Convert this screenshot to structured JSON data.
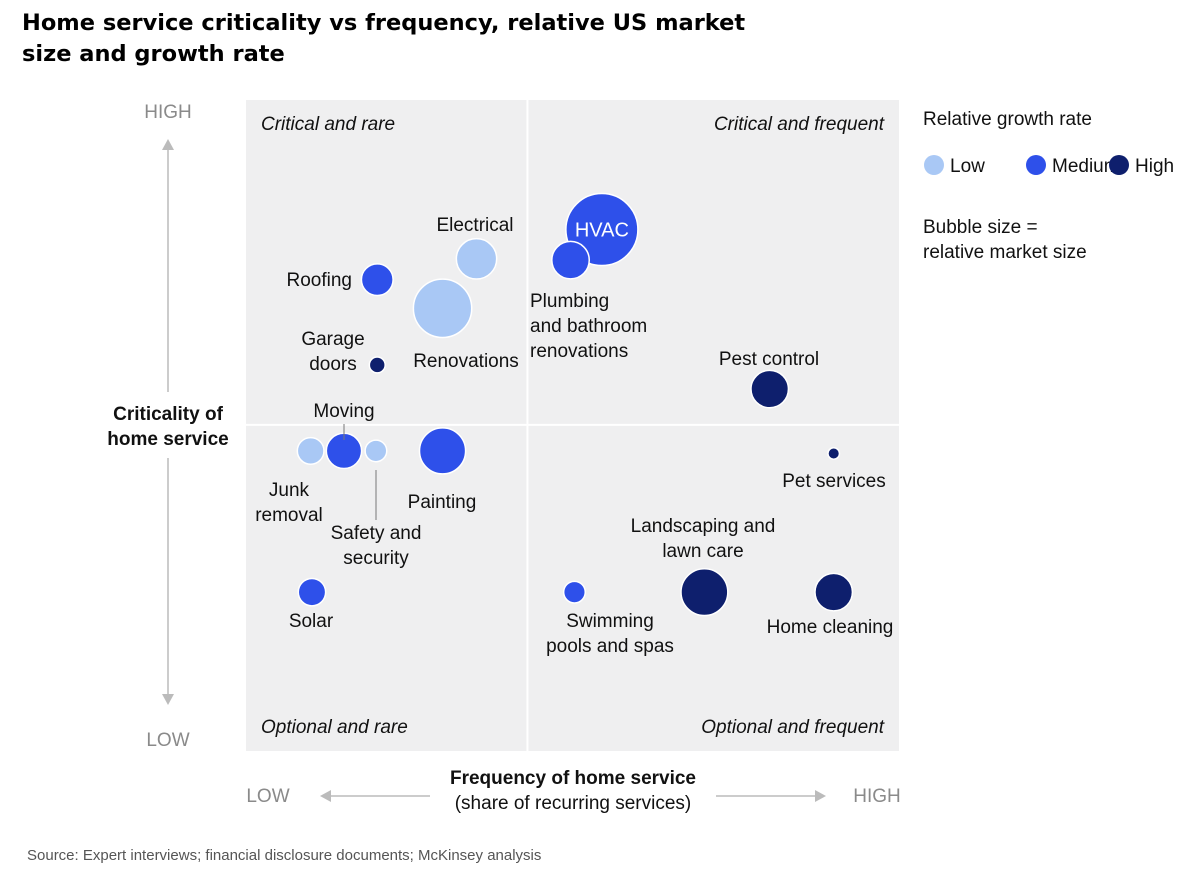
{
  "title": "Home service criticality vs frequency, relative US market size and growth rate",
  "source": "Source: Expert interviews; financial disclosure documents; McKinsey analysis",
  "colors": {
    "low": "#a9c8f5",
    "medium": "#2e50ea",
    "high": "#0e1f6d",
    "quadrant_bg": "#efeff0",
    "divider": "#ffffff",
    "axis_gray": "#8a8a8a"
  },
  "chart_data": {
    "type": "scatter",
    "subtype": "bubble",
    "title": "Home service criticality vs frequency, relative US market size and growth rate",
    "xlabel": "Frequency of home service",
    "xlabel_sub": "(share of recurring services)",
    "ylabel": "Criticality of home service",
    "x_low": "LOW",
    "x_high": "HIGH",
    "y_low": "LOW",
    "y_high": "HIGH",
    "xlim": [
      0,
      100
    ],
    "ylim": [
      0,
      100
    ],
    "quadrants": {
      "top_left": "Critical and rare",
      "top_right": "Critical and frequent",
      "bottom_left": "Optional and rare",
      "bottom_right": "Optional and frequent"
    },
    "legend": {
      "title": "Relative growth rate",
      "items": [
        {
          "key": "low",
          "label": "Low"
        },
        {
          "key": "medium",
          "label": "Medium"
        },
        {
          "key": "high",
          "label": "High"
        }
      ],
      "size_note": [
        "Bubble size =",
        "relative market size"
      ],
      "position": "right"
    },
    "points": [
      {
        "name": "HVAC",
        "label": [
          "HVAC"
        ],
        "x": 54.5,
        "y": 80.1,
        "size": 1.0,
        "growth": "medium"
      },
      {
        "name": "Electrical",
        "label": [
          "Electrical"
        ],
        "x": 35.3,
        "y": 75.6,
        "size": 0.56,
        "growth": "low"
      },
      {
        "name": "Plumbing",
        "label": [
          "Plumbing",
          "and bathroom",
          "renovations"
        ],
        "x": 49.7,
        "y": 75.4,
        "size": 0.52,
        "growth": "medium"
      },
      {
        "name": "Roofing",
        "label": [
          "Roofing"
        ],
        "x": 20.1,
        "y": 72.4,
        "size": 0.44,
        "growth": "medium"
      },
      {
        "name": "Renovations",
        "label": [
          "Renovations"
        ],
        "x": 30.1,
        "y": 68.0,
        "size": 0.81,
        "growth": "low"
      },
      {
        "name": "Garage doors",
        "label": [
          "Garage",
          "doors"
        ],
        "x": 20.1,
        "y": 59.3,
        "size": 0.22,
        "growth": "high"
      },
      {
        "name": "Pest control",
        "label": [
          "Pest control"
        ],
        "x": 80.2,
        "y": 55.6,
        "size": 0.52,
        "growth": "high"
      },
      {
        "name": "Junk removal",
        "label": [
          "Junk",
          "removal"
        ],
        "x": 9.9,
        "y": 46.1,
        "size": 0.37,
        "growth": "low"
      },
      {
        "name": "Moving",
        "label": [
          "Moving"
        ],
        "x": 15.0,
        "y": 46.1,
        "size": 0.49,
        "growth": "medium"
      },
      {
        "name": "Safety and security",
        "label": [
          "Safety and",
          "security"
        ],
        "x": 19.9,
        "y": 46.1,
        "size": 0.3,
        "growth": "low"
      },
      {
        "name": "Painting",
        "label": [
          "Painting"
        ],
        "x": 30.1,
        "y": 46.1,
        "size": 0.64,
        "growth": "medium"
      },
      {
        "name": "Pet services",
        "label": [
          "Pet services"
        ],
        "x": 90.0,
        "y": 45.7,
        "size": 0.16,
        "growth": "high"
      },
      {
        "name": "Solar",
        "label": [
          "Solar"
        ],
        "x": 10.1,
        "y": 24.4,
        "size": 0.38,
        "growth": "medium"
      },
      {
        "name": "Swimming pools and spas",
        "label": [
          "Swimming",
          "pools and spas"
        ],
        "x": 50.3,
        "y": 24.4,
        "size": 0.3,
        "growth": "medium"
      },
      {
        "name": "Landscaping and lawn care",
        "label": [
          "Landscaping and",
          "lawn care"
        ],
        "x": 70.2,
        "y": 24.4,
        "size": 0.65,
        "growth": "high"
      },
      {
        "name": "Home cleaning",
        "label": [
          "Home cleaning"
        ],
        "x": 90.0,
        "y": 24.4,
        "size": 0.52,
        "growth": "high"
      }
    ]
  }
}
